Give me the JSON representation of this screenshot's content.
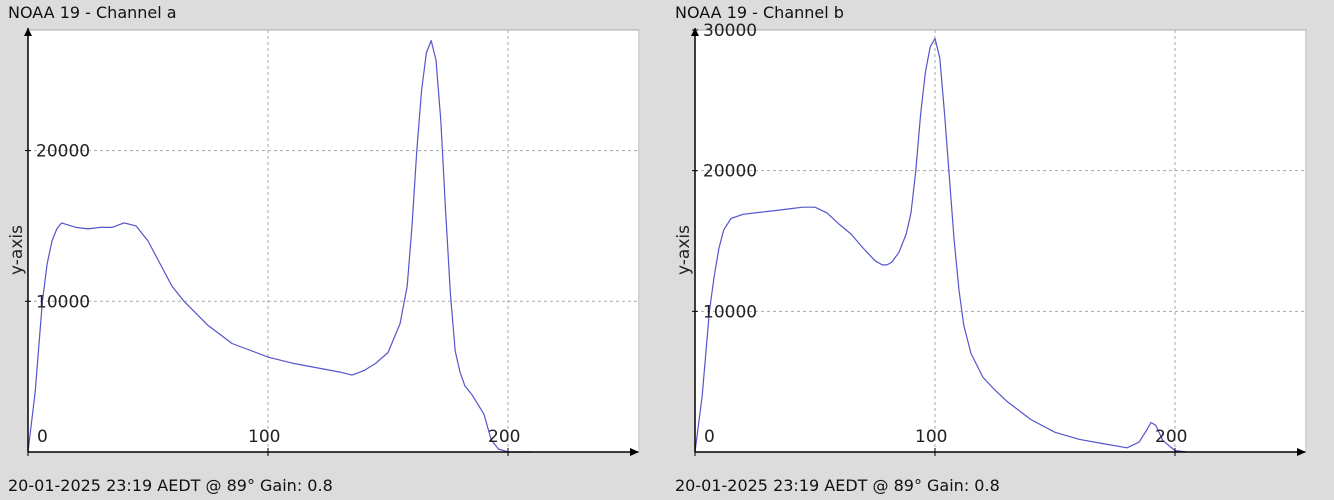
{
  "panels": [
    {
      "title": "NOAA 19 - Channel a",
      "footer": "20-01-2025 23:19 AEDT @ 89° Gain: 0.8"
    },
    {
      "title": "NOAA 19 - Channel b",
      "footer": "20-01-2025 23:19 AEDT @ 89° Gain: 0.8"
    }
  ],
  "chart_data": [
    {
      "type": "line",
      "title": "NOAA 19 - Channel a",
      "xlabel": "",
      "ylabel": "y-axis",
      "xlim": [
        0,
        255
      ],
      "ylim": [
        0,
        28000
      ],
      "grid": true,
      "x_ticks": [
        0,
        100,
        200
      ],
      "y_ticks": [
        10000,
        20000
      ],
      "line_color": "#5555cc",
      "series": [
        {
          "x": [
            0,
            3,
            6,
            8,
            10,
            12,
            14,
            16,
            18,
            20,
            25,
            30,
            35,
            40,
            45,
            50,
            55,
            60,
            65,
            70,
            75,
            80,
            85,
            90,
            95,
            100,
            110,
            120,
            130,
            135,
            140,
            145,
            150,
            155,
            158,
            160,
            162,
            164,
            166,
            168,
            170,
            172,
            174,
            176,
            178,
            180,
            182,
            185,
            190,
            193,
            196,
            200,
            205,
            210
          ],
          "y": [
            0,
            4000,
            10000,
            12500,
            14000,
            14800,
            15200,
            15100,
            15000,
            14900,
            14800,
            14900,
            14900,
            15200,
            15000,
            14000,
            12500,
            11000,
            10000,
            9200,
            8400,
            7800,
            7200,
            6900,
            6600,
            6300,
            5900,
            5600,
            5300,
            5100,
            5400,
            5900,
            6600,
            8500,
            11000,
            15000,
            20000,
            24000,
            26500,
            27300,
            26000,
            22000,
            16000,
            10500,
            6700,
            5300,
            4400,
            3800,
            2500,
            800,
            200,
            0,
            0,
            0
          ]
        }
      ]
    },
    {
      "type": "line",
      "title": "NOAA 19 - Channel b",
      "xlabel": "",
      "ylabel": "y-axis",
      "xlim": [
        0,
        255
      ],
      "ylim": [
        0,
        30000
      ],
      "grid": true,
      "x_ticks": [
        0,
        100,
        200
      ],
      "y_ticks": [
        10000,
        20000,
        30000
      ],
      "line_color": "#5555cc",
      "series": [
        {
          "x": [
            0,
            3,
            6,
            8,
            10,
            12,
            15,
            20,
            25,
            30,
            35,
            40,
            45,
            50,
            55,
            60,
            65,
            70,
            75,
            78,
            80,
            82,
            85,
            88,
            90,
            92,
            94,
            96,
            98,
            100,
            102,
            104,
            106,
            108,
            110,
            112,
            115,
            120,
            125,
            130,
            140,
            150,
            160,
            170,
            180,
            185,
            188,
            190,
            192,
            195,
            200,
            205
          ],
          "y": [
            0,
            4000,
            10000,
            12500,
            14500,
            15800,
            16600,
            16900,
            17000,
            17100,
            17200,
            17300,
            17400,
            17400,
            17000,
            16200,
            15500,
            14500,
            13600,
            13300,
            13300,
            13500,
            14200,
            15500,
            17000,
            20000,
            24000,
            27000,
            28800,
            29400,
            28000,
            24000,
            19500,
            15000,
            11500,
            9000,
            7000,
            5300,
            4400,
            3600,
            2300,
            1400,
            900,
            600,
            300,
            700,
            1500,
            2100,
            1900,
            800,
            100,
            0
          ]
        }
      ]
    }
  ]
}
